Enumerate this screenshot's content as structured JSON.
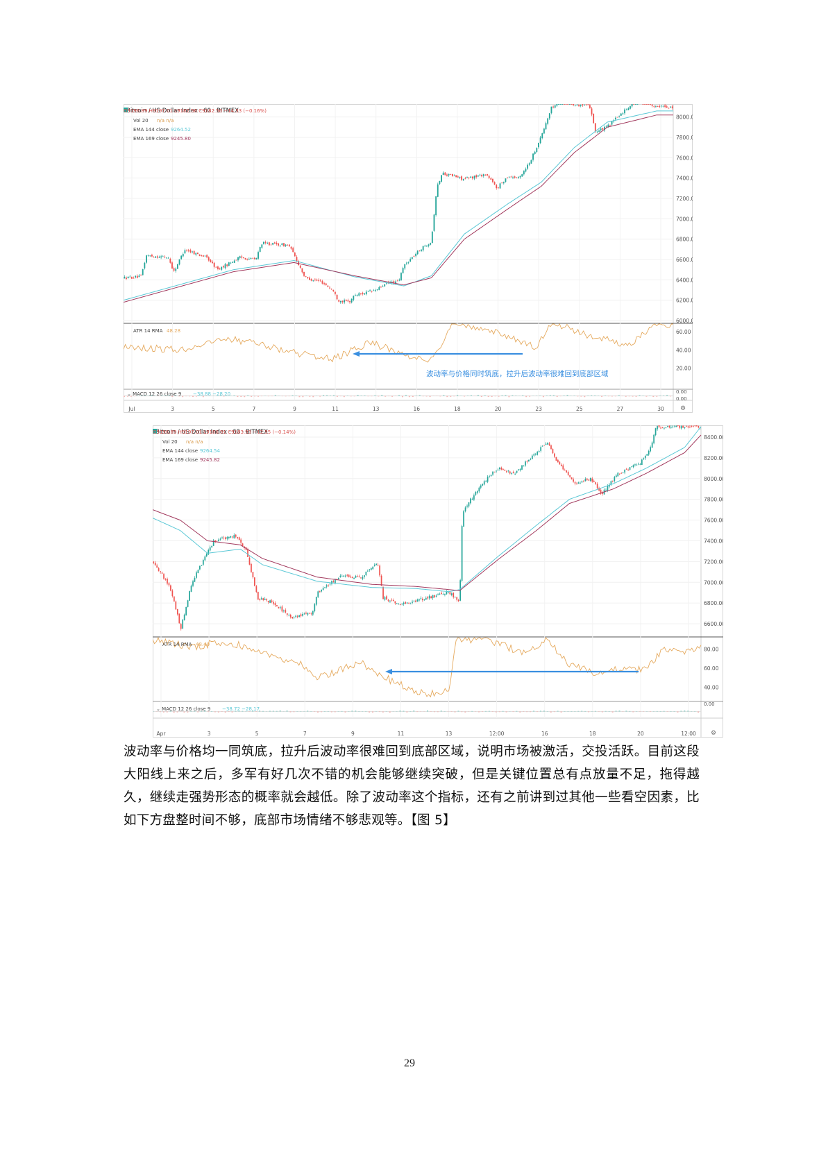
{
  "charts": [
    {
      "id": "chart-july",
      "header": {
        "title": "Bitcoin / US Dollar Index · 60 · BITMEX",
        "ohlc": "O9196.89  H9197.01  L9182.56  C9182.56  −14.33 (−0.16%)",
        "vol_label": "Vol 20",
        "vol_value": "n/a  n/a",
        "ema144_label": "EMA 144 close",
        "ema144_value": "9264.52",
        "ema169_label": "EMA 169 close",
        "ema169_value": "9245.80"
      },
      "atr_label": "ATR 14 RMA",
      "atr_value": "48.28",
      "macd_label": "MACD 12 26 close 9",
      "macd_values": "−38.88  −28.20",
      "annotation": "波动率与价格同时筑底，拉升后波动率很难回到底部区域",
      "colors": {
        "up": "#26a69a",
        "down": "#ef5350",
        "ema144": "#5bc8d6",
        "ema169": "#a23a5e",
        "atr": "#e5a95d",
        "arrow": "#3a8fe0"
      }
    },
    {
      "id": "chart-april",
      "header": {
        "title": "Bitcoin / US Dollar Index · 60 · BITMEX",
        "ohlc": "O9196.89  H9197.01  L9180.91  C9183.93  −12.95 (−0.14%)",
        "vol_label": "Vol 20",
        "vol_value": "n/a  n/a",
        "ema144_label": "EMA 144 close",
        "ema144_value": "9264.54",
        "ema169_label": "EMA 169 close",
        "ema169_value": "9245.82"
      },
      "atr_label": "ATR 14 RMA",
      "atr_value": "48.40",
      "macd_label": "MACD 12 26 close 9",
      "macd_values": "−38.72  −28.17",
      "annotation": "",
      "colors": {
        "up": "#26a69a",
        "down": "#ef5350",
        "ema144": "#5bc8d6",
        "ema169": "#a23a5e",
        "atr": "#e5a95d",
        "arrow": "#3a8fe0"
      }
    }
  ],
  "chart_data": [
    {
      "type": "candlestick",
      "title": "Bitcoin / US Dollar Index · 60 · BITMEX",
      "ylim": [
        6000,
        8100
      ],
      "price_ticks": [
        "8000.00",
        "7800.00",
        "7600.00",
        "7400.00",
        "7200.00",
        "7000.00",
        "6800.00",
        "6600.00",
        "6400.00",
        "6200.00",
        "6000.00"
      ],
      "atr_ticks": [
        "60.00",
        "40.00",
        "20.00"
      ],
      "atr_ylim": [
        0,
        66
      ],
      "macd_ticks": [
        "0.00",
        "0.00"
      ],
      "x_ticks": [
        "Jul",
        "3",
        "5",
        "7",
        "9",
        "11",
        "13",
        "16",
        "18",
        "20",
        "23",
        "25",
        "27",
        "30"
      ],
      "price_path": [
        [
          0,
          6420
        ],
        [
          0.03,
          6430
        ],
        [
          0.04,
          6640
        ],
        [
          0.08,
          6620
        ],
        [
          0.09,
          6480
        ],
        [
          0.11,
          6700
        ],
        [
          0.15,
          6620
        ],
        [
          0.17,
          6500
        ],
        [
          0.21,
          6620
        ],
        [
          0.24,
          6600
        ],
        [
          0.25,
          6760
        ],
        [
          0.3,
          6740
        ],
        [
          0.31,
          6640
        ],
        [
          0.33,
          6420
        ],
        [
          0.36,
          6380
        ],
        [
          0.38,
          6300
        ],
        [
          0.39,
          6200
        ],
        [
          0.41,
          6180
        ],
        [
          0.42,
          6250
        ],
        [
          0.46,
          6300
        ],
        [
          0.48,
          6370
        ],
        [
          0.5,
          6380
        ],
        [
          0.51,
          6540
        ],
        [
          0.54,
          6700
        ],
        [
          0.56,
          6780
        ],
        [
          0.57,
          7300
        ],
        [
          0.58,
          7450
        ],
        [
          0.62,
          7390
        ],
        [
          0.66,
          7440
        ],
        [
          0.68,
          7300
        ],
        [
          0.7,
          7420
        ],
        [
          0.72,
          7400
        ],
        [
          0.74,
          7560
        ],
        [
          0.76,
          7800
        ],
        [
          0.78,
          8100
        ],
        [
          0.8,
          8150
        ],
        [
          0.85,
          8100
        ],
        [
          0.86,
          7850
        ],
        [
          0.88,
          7900
        ],
        [
          0.92,
          8100
        ],
        [
          0.94,
          8200
        ],
        [
          0.97,
          8100
        ]
      ],
      "ema144_path": [
        [
          0,
          6200
        ],
        [
          0.08,
          6320
        ],
        [
          0.2,
          6500
        ],
        [
          0.31,
          6590
        ],
        [
          0.42,
          6430
        ],
        [
          0.51,
          6340
        ],
        [
          0.56,
          6440
        ],
        [
          0.62,
          6850
        ],
        [
          0.7,
          7150
        ],
        [
          0.76,
          7360
        ],
        [
          0.82,
          7700
        ],
        [
          0.88,
          7950
        ],
        [
          0.97,
          8060
        ]
      ],
      "ema169_path": [
        [
          0,
          6180
        ],
        [
          0.08,
          6300
        ],
        [
          0.2,
          6480
        ],
        [
          0.31,
          6570
        ],
        [
          0.42,
          6440
        ],
        [
          0.51,
          6350
        ],
        [
          0.56,
          6420
        ],
        [
          0.62,
          6800
        ],
        [
          0.7,
          7100
        ],
        [
          0.76,
          7320
        ],
        [
          0.82,
          7650
        ],
        [
          0.88,
          7900
        ],
        [
          0.97,
          8020
        ]
      ],
      "atr_path": [
        [
          0,
          44
        ],
        [
          0.1,
          40
        ],
        [
          0.2,
          52
        ],
        [
          0.3,
          38
        ],
        [
          0.38,
          30
        ],
        [
          0.45,
          48
        ],
        [
          0.52,
          33
        ],
        [
          0.55,
          28
        ],
        [
          0.58,
          44
        ],
        [
          0.6,
          72
        ],
        [
          0.7,
          55
        ],
        [
          0.75,
          42
        ],
        [
          0.78,
          70
        ],
        [
          0.85,
          55
        ],
        [
          0.92,
          45
        ],
        [
          0.97,
          68
        ]
      ]
    },
    {
      "type": "candlestick",
      "title": "Bitcoin / US Dollar Index · 60 · BITMEX",
      "ylim": [
        6500,
        8500
      ],
      "price_ticks": [
        "8400.00",
        "8200.00",
        "8000.00",
        "7800.00",
        "7600.00",
        "7400.00",
        "7200.00",
        "7000.00",
        "6800.00",
        "6600.00"
      ],
      "atr_ticks": [
        "80.00",
        "60.00",
        "40.00"
      ],
      "atr_ylim": [
        28,
        90
      ],
      "macd_ticks": [
        "0.00"
      ],
      "x_ticks": [
        "Apr",
        "3",
        "5",
        "7",
        "9",
        "11",
        "13",
        "12:00",
        "16",
        "18",
        "20",
        "12:00"
      ],
      "price_path": [
        [
          0,
          7200
        ],
        [
          0.03,
          6950
        ],
        [
          0.05,
          6560
        ],
        [
          0.07,
          7000
        ],
        [
          0.09,
          7200
        ],
        [
          0.11,
          7400
        ],
        [
          0.15,
          7450
        ],
        [
          0.17,
          7300
        ],
        [
          0.19,
          6850
        ],
        [
          0.22,
          6800
        ],
        [
          0.25,
          6660
        ],
        [
          0.29,
          6700
        ],
        [
          0.3,
          6900
        ],
        [
          0.34,
          7050
        ],
        [
          0.38,
          7050
        ],
        [
          0.41,
          7180
        ],
        [
          0.42,
          6850
        ],
        [
          0.45,
          6780
        ],
        [
          0.5,
          6850
        ],
        [
          0.54,
          6900
        ],
        [
          0.56,
          6820
        ],
        [
          0.565,
          7680
        ],
        [
          0.6,
          7950
        ],
        [
          0.63,
          8100
        ],
        [
          0.66,
          8050
        ],
        [
          0.7,
          8250
        ],
        [
          0.72,
          8350
        ],
        [
          0.74,
          8150
        ],
        [
          0.77,
          7950
        ],
        [
          0.8,
          8000
        ],
        [
          0.82,
          7850
        ],
        [
          0.85,
          8050
        ],
        [
          0.89,
          8150
        ],
        [
          0.91,
          8300
        ],
        [
          0.92,
          8500
        ]
      ],
      "ema144_path": [
        [
          0,
          7620
        ],
        [
          0.05,
          7500
        ],
        [
          0.1,
          7280
        ],
        [
          0.16,
          7320
        ],
        [
          0.2,
          7170
        ],
        [
          0.3,
          7010
        ],
        [
          0.4,
          6950
        ],
        [
          0.48,
          6940
        ],
        [
          0.54,
          6910
        ],
        [
          0.56,
          6930
        ],
        [
          0.63,
          7250
        ],
        [
          0.7,
          7550
        ],
        [
          0.76,
          7800
        ],
        [
          0.84,
          7950
        ],
        [
          0.9,
          8100
        ],
        [
          0.97,
          8300
        ],
        [
          1.0,
          8500
        ]
      ],
      "ema169_path": [
        [
          0,
          7700
        ],
        [
          0.05,
          7600
        ],
        [
          0.1,
          7400
        ],
        [
          0.16,
          7360
        ],
        [
          0.2,
          7230
        ],
        [
          0.3,
          7050
        ],
        [
          0.4,
          6980
        ],
        [
          0.48,
          6960
        ],
        [
          0.54,
          6930
        ],
        [
          0.56,
          6920
        ],
        [
          0.63,
          7220
        ],
        [
          0.7,
          7500
        ],
        [
          0.76,
          7760
        ],
        [
          0.84,
          7900
        ],
        [
          0.9,
          8050
        ],
        [
          0.97,
          8250
        ],
        [
          1.0,
          8420
        ]
      ],
      "atr_path": [
        [
          0,
          90
        ],
        [
          0.08,
          82
        ],
        [
          0.12,
          88
        ],
        [
          0.18,
          82
        ],
        [
          0.2,
          78
        ],
        [
          0.28,
          62
        ],
        [
          0.3,
          50
        ],
        [
          0.38,
          66
        ],
        [
          0.4,
          56
        ],
        [
          0.46,
          41
        ],
        [
          0.5,
          32
        ],
        [
          0.54,
          38
        ],
        [
          0.555,
          92
        ],
        [
          0.62,
          88
        ],
        [
          0.68,
          75
        ],
        [
          0.72,
          90
        ],
        [
          0.76,
          64
        ],
        [
          0.8,
          56
        ],
        [
          0.86,
          60
        ],
        [
          0.9,
          58
        ],
        [
          0.93,
          80
        ],
        [
          0.97,
          75
        ],
        [
          1.0,
          82
        ]
      ]
    }
  ],
  "paragraph": "波动率与价格均一同筑底，拉升后波动率很难回到底部区域，说明市场被激活，交投活跃。目前这段大阳线上来之后，多军有好几次不错的机会能够继续突破，但是关键位置总有点放量不足，拖得越久，继续走强势形态的概率就会越低。除了波动率这个指标，还有之前讲到过其他一些看空因素，比如下方盘整时间不够，底部市场情绪不够悲观等。【图 5】",
  "page_number": "29"
}
